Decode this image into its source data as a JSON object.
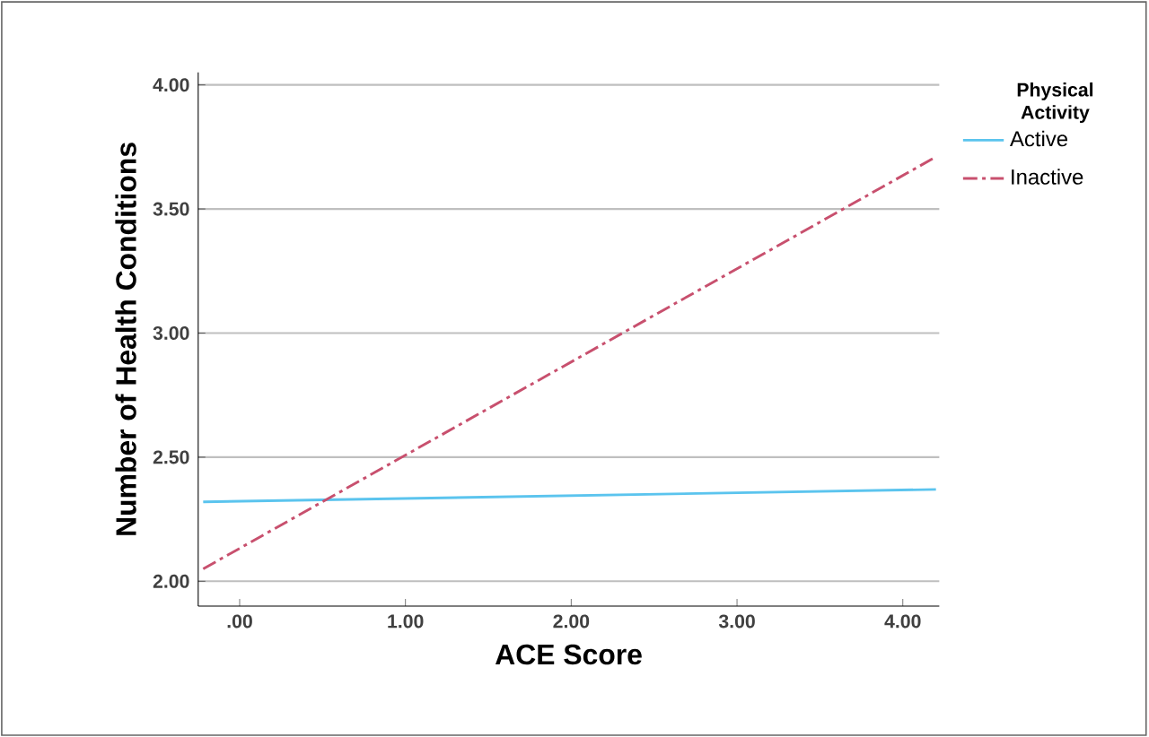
{
  "chart_data": {
    "type": "line",
    "xlabel": "ACE Score",
    "ylabel": "Number of Health Conditions",
    "legend_title": "Physical Activity",
    "x": [
      -0.22,
      4.2
    ],
    "series": [
      {
        "name": "Active",
        "color": "#5bc4ee",
        "values": [
          2.32,
          2.37
        ]
      },
      {
        "name": "Inactive",
        "color": "#c8506e",
        "values": [
          2.05,
          3.71
        ],
        "line_style": "dashed"
      }
    ],
    "xlim": [
      -0.25,
      4.22
    ],
    "xticks": [
      {
        "value": 0,
        "label": ".00"
      },
      {
        "value": 1,
        "label": "1.00"
      },
      {
        "value": 2,
        "label": "2.00"
      },
      {
        "value": 3,
        "label": "3.00"
      },
      {
        "value": 4,
        "label": "4.00"
      }
    ],
    "ylim": [
      1.9,
      4.05
    ],
    "yticks": [
      {
        "value": 2,
        "label": "2.00"
      },
      {
        "value": 2.5,
        "label": "2.50"
      },
      {
        "value": 3,
        "label": "3.00"
      },
      {
        "value": 3.5,
        "label": "3.50"
      },
      {
        "value": 4,
        "label": "4.00"
      }
    ],
    "grid": "y",
    "legend": "top right",
    "marker": "none"
  }
}
